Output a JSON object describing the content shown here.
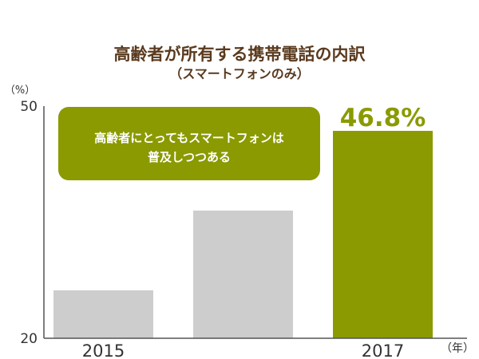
{
  "colors": {
    "accent": "#8a9a00",
    "bar_default": "#cdcdcd",
    "title": "#5a3a1e",
    "axis": "#333333",
    "callout_bg": "#8a9a00",
    "callout_text": "#ffffff"
  },
  "callout": {
    "line1": "高齢者にとってもスマートフォンは",
    "line2": "普及しつつある"
  },
  "chart_data": {
    "type": "bar",
    "title": "高齢者が所有する携帯電話の内訳",
    "subtitle": "（スマートフォンのみ）",
    "y_unit": "（%）",
    "x_unit": "（年）",
    "xlabel": "",
    "ylabel": "",
    "ylim": [
      20,
      50
    ],
    "yticks": [
      "50",
      "20"
    ],
    "grid": false,
    "legend": "none",
    "categories": [
      "2015",
      "",
      "2017"
    ],
    "values": [
      26.2,
      36.5,
      46.8
    ],
    "highlight_index": 2,
    "data_labels": [
      "",
      "",
      "46.8%"
    ]
  }
}
